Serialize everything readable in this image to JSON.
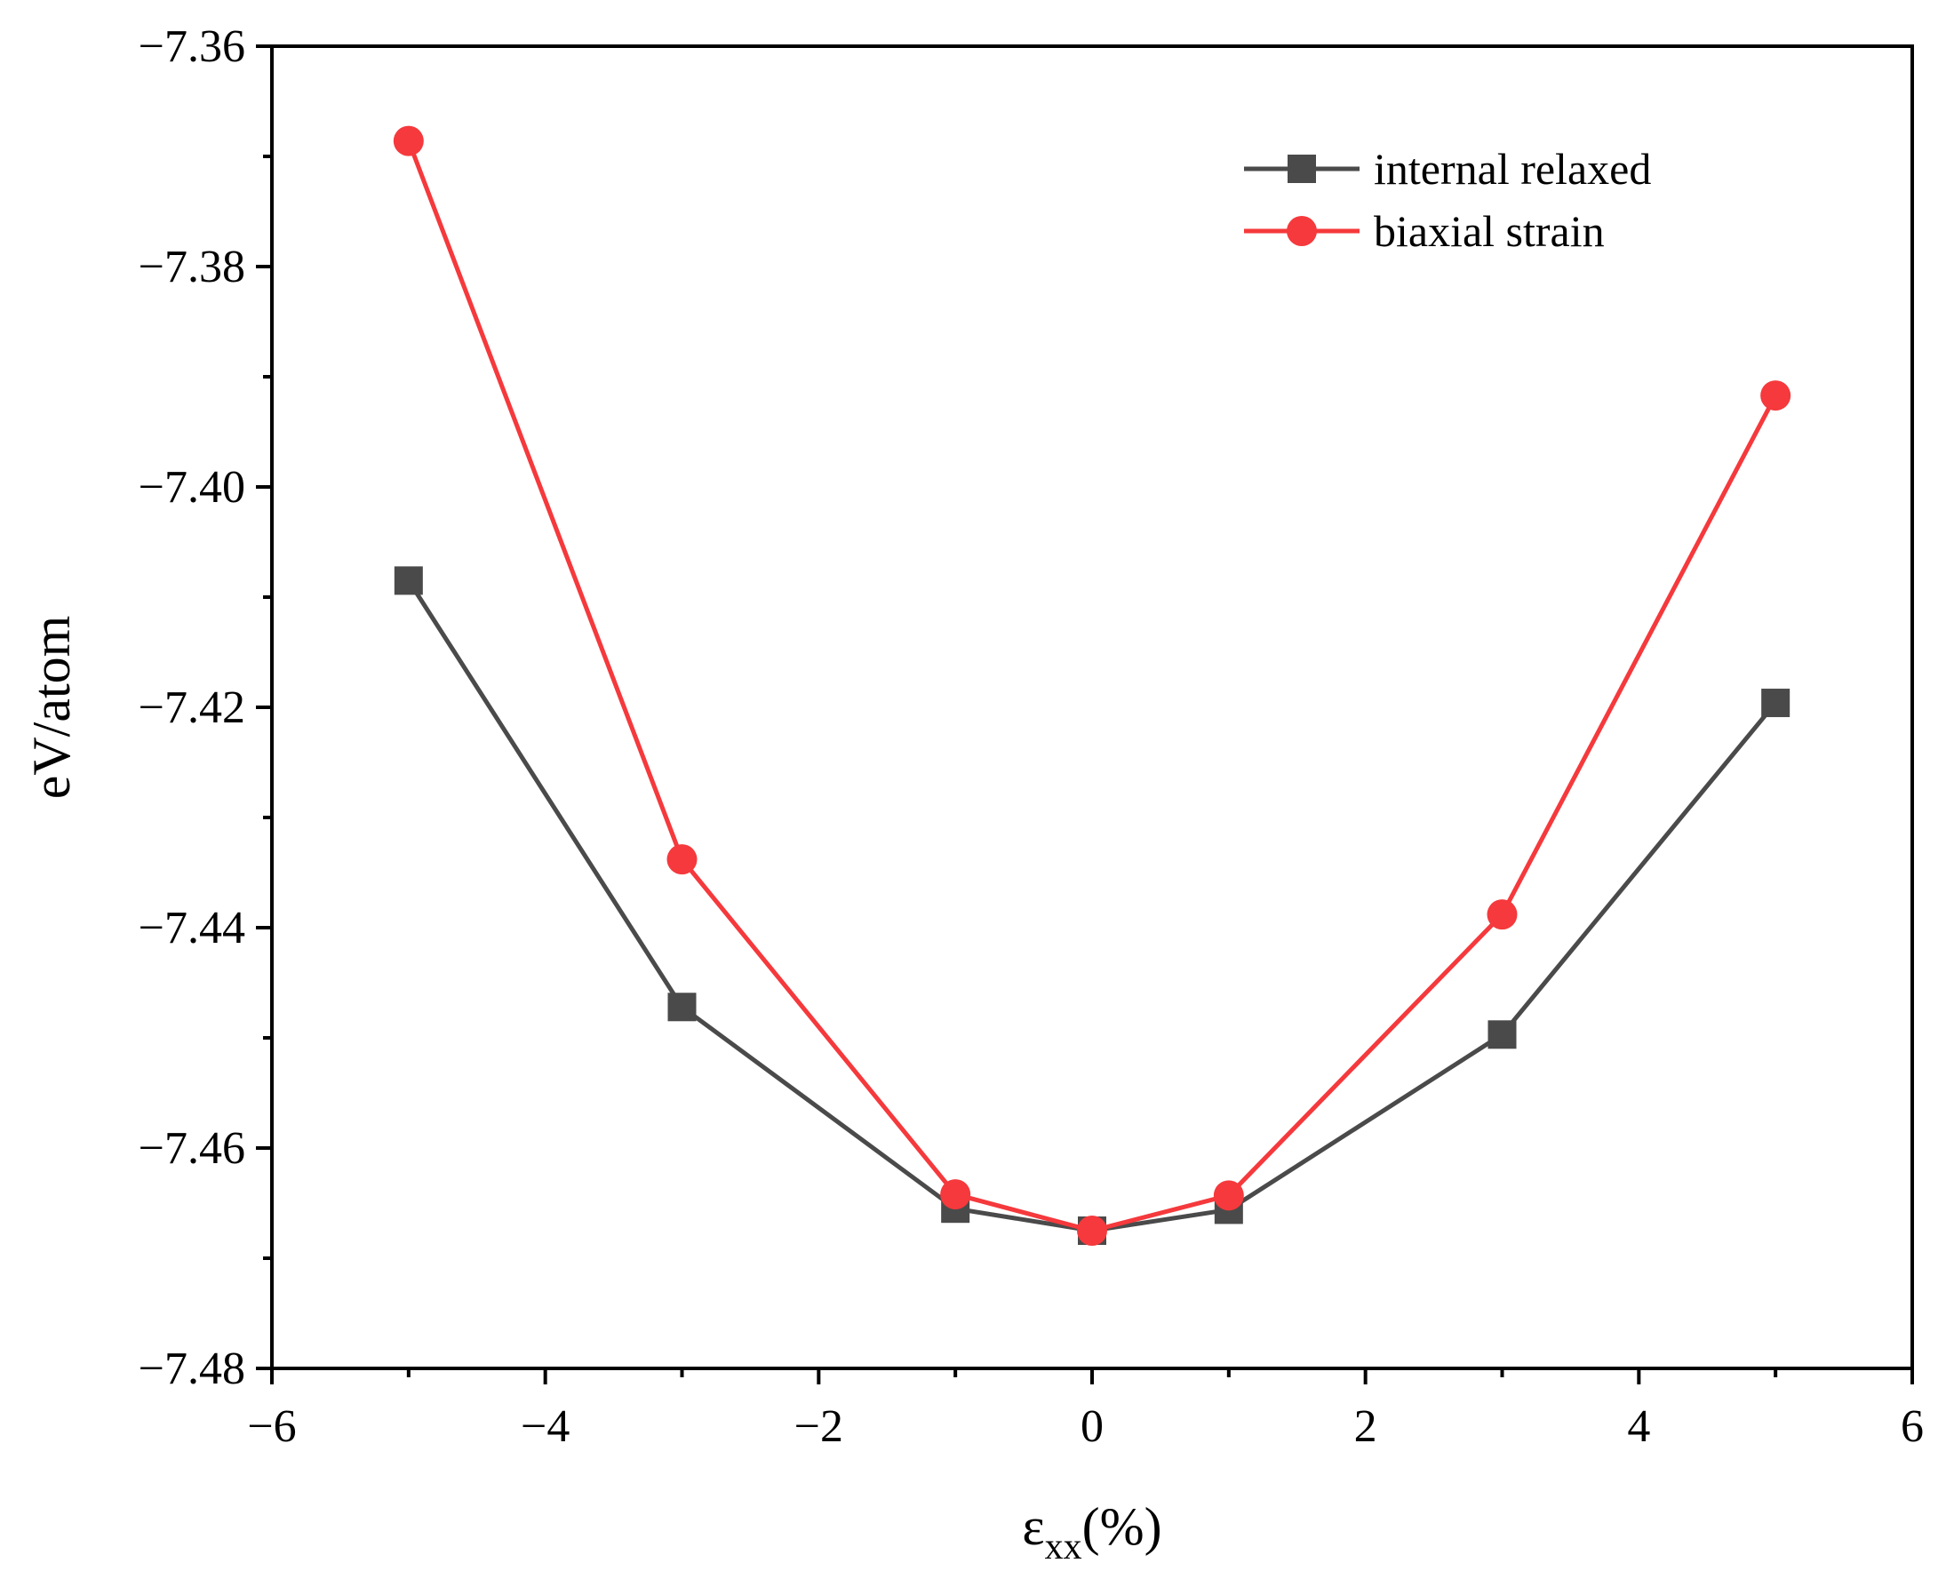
{
  "chart_data": {
    "type": "line",
    "title": "",
    "xlabel": "εxx(%)",
    "xlabel_main": "ε",
    "xlabel_sub": "xx",
    "xlabel_suffix": "(%)",
    "ylabel": "eV/atom",
    "xlim": [
      -6,
      6
    ],
    "ylim": [
      -7.48,
      -7.36
    ],
    "xticks": [
      -6,
      -4,
      -2,
      0,
      2,
      4,
      6
    ],
    "xtick_labels": [
      "−6",
      "−4",
      "−2",
      "0",
      "2",
      "4",
      "6"
    ],
    "yticks": [
      -7.48,
      -7.46,
      -7.44,
      -7.42,
      -7.4,
      -7.38,
      -7.36
    ],
    "ytick_labels": [
      "−7.48",
      "−7.46",
      "−7.44",
      "−7.42",
      "−7.40",
      "−7.38",
      "−7.36"
    ],
    "grid": false,
    "legend_position": "top-right",
    "x": [
      -5,
      -3,
      -1,
      0,
      1,
      3,
      5
    ],
    "series": [
      {
        "name": "internal relaxed",
        "color": "#4a4a4a",
        "marker": "square",
        "values": [
          -7.4085,
          -7.4472,
          -7.4655,
          -7.4675,
          -7.4656,
          -7.4497,
          -7.4196
        ]
      },
      {
        "name": "biaxial strain",
        "color": "#f5393c",
        "marker": "circle",
        "values": [
          -7.3686,
          -7.4338,
          -7.4642,
          -7.4675,
          -7.4643,
          -7.4388,
          -7.3917
        ]
      }
    ]
  }
}
